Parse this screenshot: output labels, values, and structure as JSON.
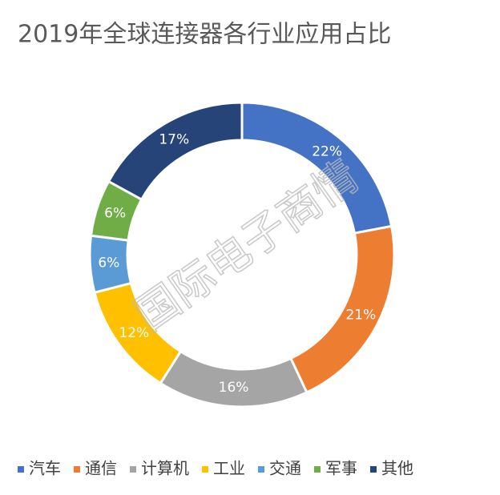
{
  "chart_data": {
    "type": "donut",
    "title": "2019年全球连接器各行业应用占比",
    "watermark": "国际电子商情",
    "categories": [
      "汽车",
      "通信",
      "计算机",
      "工业",
      "交通",
      "军事",
      "其他"
    ],
    "values": [
      22,
      21,
      16,
      12,
      6,
      6,
      17
    ],
    "value_labels": [
      "22%",
      "21%",
      "16%",
      "12%",
      "6%",
      "6%",
      "17%"
    ],
    "colors": [
      "#4472c4",
      "#ed7d31",
      "#a5a5a5",
      "#ffc000",
      "#5b9bd5",
      "#70ad47",
      "#264478"
    ],
    "legend": "bottom"
  }
}
